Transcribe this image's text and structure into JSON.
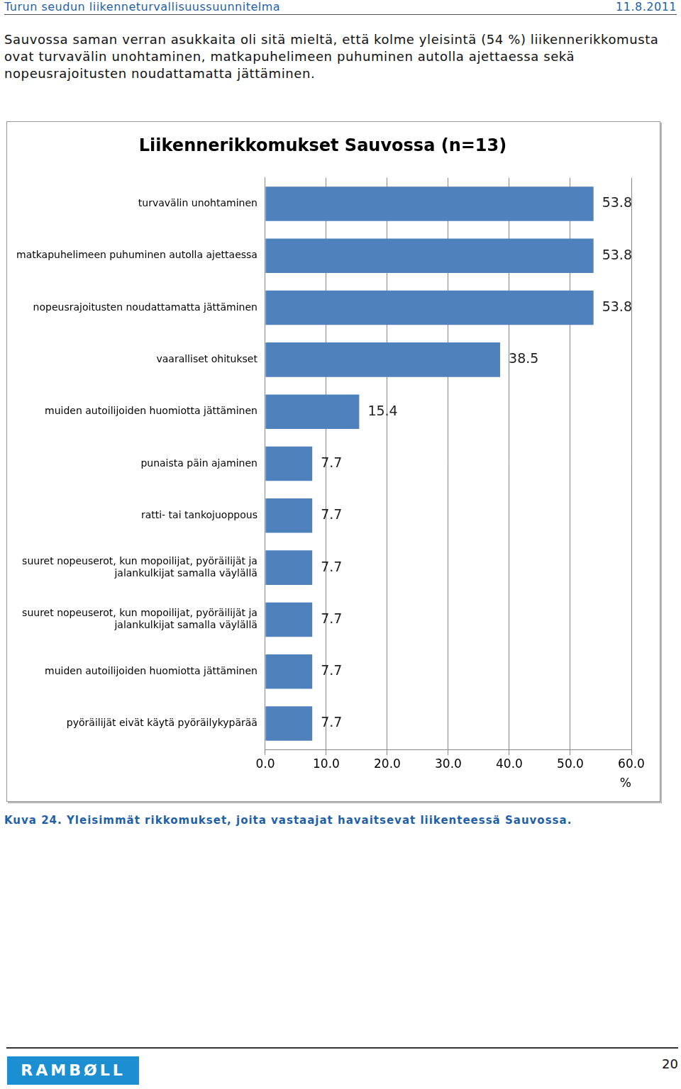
{
  "header": {
    "title": "Turun seudun liikenneturvallisuussuunnitelma",
    "date": "11.8.2011"
  },
  "text": "Sauvossa saman verran asukkaita oli sitä mieltä, että kolme yleisintä (54 %) liikennerikkomusta ovat turvavälin unohtaminen, matkapuhelimeen puhuminen autolla ajettaessa sekä nopeusrajoitusten noudattamatta jättäminen.",
  "chart_data": {
    "type": "bar",
    "title": "Liikennerikkomukset Sauvossa (n=13)",
    "orientation": "horizontal",
    "categories": [
      "turvavälin unohtaminen",
      "matkapuhelimeen puhuminen autolla ajettaessa",
      "nopeusrajoitusten noudattamatta jättäminen",
      "vaaralliset ohitukset",
      "muiden autoilijoiden huomiotta jättäminen",
      "punaista päin ajaminen",
      "ratti- tai tankojuoppous",
      "suuret nopeuserot, kun mopoilijat, pyöräilijät ja jalankulkijat samalla väylällä",
      "suuret nopeuserot, kun mopoilijat, pyöräilijät ja jalankulkijat samalla väylällä",
      "muiden autoilijoiden huomiotta jättäminen",
      "pyöräilijät eivät käytä pyöräilykypärää"
    ],
    "values": [
      53.8,
      53.8,
      53.8,
      38.5,
      15.4,
      7.7,
      7.7,
      7.7,
      7.7,
      7.7,
      7.7
    ],
    "color": "#4f81bd",
    "x_label": "%",
    "xlim": [
      0,
      60
    ],
    "xticks": [
      {
        "value": 0,
        "label": "0.0"
      },
      {
        "value": 10,
        "label": "10.0"
      },
      {
        "value": 20,
        "label": "20.0"
      },
      {
        "value": 30,
        "label": "30.0"
      },
      {
        "value": 40,
        "label": "40.0"
      },
      {
        "value": 50,
        "label": "50.0"
      },
      {
        "value": 60,
        "label": "60.0"
      }
    ],
    "grid": true,
    "data_labels": true
  },
  "caption": "Kuva 24. Yleisimmät rikkomukset, joita vastaajat havaitsevat liikenteessä Sauvossa.",
  "footer": {
    "logo": "RAMBØLL",
    "page": "20"
  }
}
